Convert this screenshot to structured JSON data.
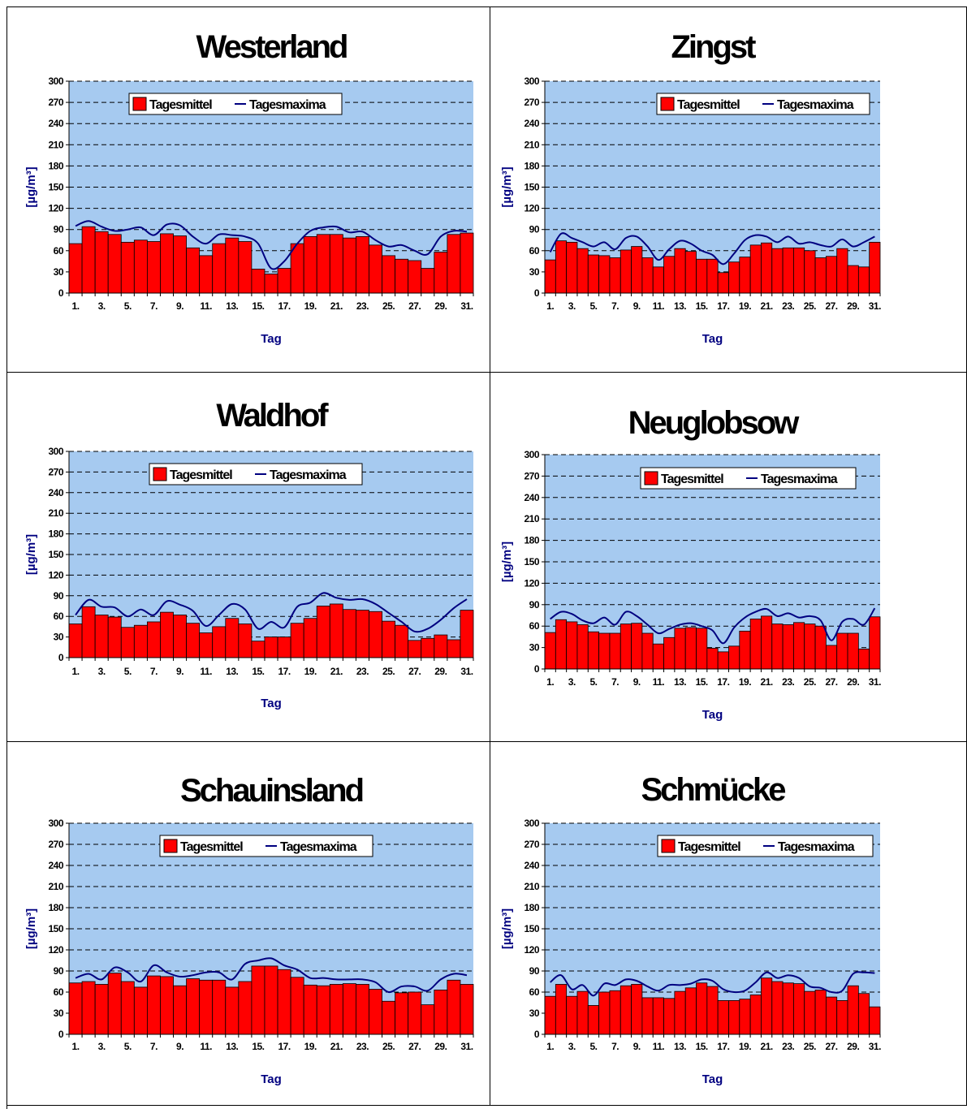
{
  "chart_data": [
    {
      "type": "bar",
      "title": "Westerland",
      "xlabel": "Tag",
      "ylabel": "[µg/m³]",
      "ylim": [
        0,
        300
      ],
      "yticks": [
        "0",
        "30",
        "60",
        "90",
        "120",
        "150",
        "180",
        "210",
        "240",
        "270",
        "300"
      ],
      "xticks": [
        "1.",
        "3.",
        "5.",
        "7.",
        "9.",
        "11.",
        "13.",
        "15.",
        "17.",
        "19.",
        "21.",
        "23.",
        "25.",
        "27.",
        "29.",
        "31."
      ],
      "legend": "top-center",
      "grid": true,
      "series": [
        {
          "name": "Tagesmittel",
          "kind": "bar",
          "color": "#ff0000",
          "values": [
            70,
            94,
            87,
            83,
            72,
            75,
            73,
            84,
            81,
            64,
            53,
            70,
            78,
            73,
            34,
            27,
            35,
            70,
            80,
            83,
            83,
            78,
            80,
            68,
            53,
            48,
            46,
            35,
            58,
            83,
            85
          ]
        },
        {
          "name": "Tagesmaxima",
          "kind": "line",
          "color": "#000080",
          "values": [
            95,
            102,
            94,
            88,
            90,
            93,
            82,
            97,
            96,
            80,
            70,
            83,
            82,
            80,
            70,
            35,
            45,
            70,
            88,
            93,
            94,
            86,
            87,
            75,
            66,
            68,
            60,
            55,
            80,
            88,
            87
          ]
        }
      ]
    },
    {
      "type": "bar",
      "title": "Zingst",
      "xlabel": "Tag",
      "ylabel": "[µg/m³]",
      "ylim": [
        0,
        300
      ],
      "yticks": [
        "0",
        "30",
        "60",
        "90",
        "120",
        "150",
        "180",
        "210",
        "240",
        "270",
        "300"
      ],
      "xticks": [
        "1.",
        "3.",
        "5.",
        "7.",
        "9.",
        "11.",
        "13.",
        "15.",
        "17.",
        "19.",
        "21.",
        "23.",
        "25.",
        "27.",
        "29.",
        "31."
      ],
      "legend": "top-right",
      "grid": true,
      "series": [
        {
          "name": "Tagesmittel",
          "kind": "bar",
          "color": "#ff0000",
          "values": [
            47,
            74,
            72,
            63,
            54,
            53,
            50,
            61,
            66,
            50,
            37,
            52,
            63,
            59,
            48,
            48,
            29,
            44,
            51,
            68,
            71,
            63,
            64,
            64,
            60,
            50,
            52,
            63,
            39,
            37,
            72
          ]
        },
        {
          "name": "Tagesmaxima",
          "kind": "line",
          "color": "#000080",
          "values": [
            58,
            84,
            78,
            72,
            66,
            72,
            62,
            78,
            80,
            66,
            47,
            62,
            74,
            70,
            60,
            54,
            41,
            56,
            75,
            82,
            80,
            72,
            80,
            70,
            72,
            68,
            66,
            76,
            66,
            72,
            80
          ]
        }
      ]
    },
    {
      "type": "bar",
      "title": "Waldhof",
      "xlabel": "Tag",
      "ylabel": "[µg/m³]",
      "ylim": [
        0,
        300
      ],
      "yticks": [
        "0",
        "30",
        "60",
        "90",
        "120",
        "150",
        "180",
        "210",
        "240",
        "270",
        "300"
      ],
      "xticks": [
        "1.",
        "3.",
        "5.",
        "7.",
        "9.",
        "11.",
        "13.",
        "15.",
        "17.",
        "19.",
        "21.",
        "23.",
        "25.",
        "27.",
        "29.",
        "31."
      ],
      "legend": "top-right",
      "grid": true,
      "series": [
        {
          "name": "Tagesmittel",
          "kind": "bar",
          "color": "#ff0000",
          "values": [
            49,
            74,
            62,
            59,
            44,
            47,
            52,
            66,
            62,
            50,
            36,
            45,
            57,
            49,
            24,
            30,
            30,
            50,
            57,
            75,
            78,
            70,
            69,
            67,
            53,
            47,
            25,
            28,
            33,
            26,
            69
          ]
        },
        {
          "name": "Tagesmaxima",
          "kind": "line",
          "color": "#000080",
          "values": [
            62,
            84,
            74,
            73,
            60,
            70,
            62,
            82,
            77,
            68,
            46,
            62,
            78,
            70,
            42,
            52,
            44,
            74,
            80,
            94,
            87,
            84,
            85,
            78,
            65,
            52,
            38,
            42,
            55,
            72,
            85
          ]
        }
      ]
    },
    {
      "type": "bar",
      "title": "Neuglobsow",
      "xlabel": "Tag",
      "ylabel": "[µg/m³]",
      "ylim": [
        0,
        300
      ],
      "yticks": [
        "0",
        "30",
        "60",
        "90",
        "120",
        "150",
        "180",
        "210",
        "240",
        "270",
        "300"
      ],
      "xticks": [
        "1.",
        "3.",
        "5.",
        "7.",
        "9.",
        "11.",
        "13.",
        "15.",
        "17.",
        "19.",
        "21.",
        "23.",
        "25.",
        "27.",
        "29.",
        "31."
      ],
      "legend": "top-right",
      "grid": true,
      "series": [
        {
          "name": "Tagesmittel",
          "kind": "bar",
          "color": "#ff0000",
          "values": [
            51,
            69,
            66,
            62,
            52,
            50,
            50,
            63,
            64,
            50,
            35,
            44,
            57,
            58,
            57,
            29,
            24,
            32,
            53,
            70,
            74,
            63,
            62,
            65,
            63,
            60,
            33,
            50,
            50,
            28,
            73
          ]
        },
        {
          "name": "Tagesmaxima",
          "kind": "line",
          "color": "#000080",
          "values": [
            70,
            80,
            77,
            68,
            64,
            72,
            62,
            80,
            74,
            62,
            50,
            56,
            62,
            64,
            60,
            54,
            36,
            58,
            72,
            80,
            84,
            74,
            78,
            72,
            74,
            68,
            40,
            66,
            70,
            62,
            85
          ]
        }
      ]
    },
    {
      "type": "bar",
      "title": "Schauinsland",
      "xlabel": "Tag",
      "ylabel": "[µg/m³]",
      "ylim": [
        0,
        300
      ],
      "yticks": [
        "0",
        "30",
        "60",
        "90",
        "120",
        "150",
        "180",
        "210",
        "240",
        "270",
        "300"
      ],
      "xticks": [
        "1.",
        "3.",
        "5.",
        "7.",
        "9.",
        "11.",
        "13.",
        "15.",
        "17.",
        "19.",
        "21.",
        "23.",
        "25.",
        "27.",
        "29.",
        "31."
      ],
      "legend": "top-right",
      "grid": true,
      "series": [
        {
          "name": "Tagesmittel",
          "kind": "bar",
          "color": "#ff0000",
          "values": [
            73,
            75,
            71,
            87,
            75,
            67,
            83,
            82,
            69,
            79,
            77,
            77,
            67,
            75,
            97,
            97,
            92,
            81,
            70,
            69,
            71,
            72,
            71,
            64,
            47,
            59,
            60,
            42,
            63,
            77,
            71
          ]
        },
        {
          "name": "Tagesmaxima",
          "kind": "line",
          "color": "#000080",
          "values": [
            80,
            86,
            78,
            95,
            88,
            75,
            98,
            88,
            82,
            84,
            88,
            88,
            78,
            100,
            105,
            108,
            98,
            92,
            80,
            80,
            78,
            78,
            78,
            74,
            60,
            68,
            68,
            62,
            78,
            86,
            84
          ]
        }
      ]
    },
    {
      "type": "bar",
      "title": "Schmücke",
      "xlabel": "Tag",
      "ylabel": "[µg/m³]",
      "ylim": [
        0,
        300
      ],
      "yticks": [
        "0",
        "30",
        "60",
        "90",
        "120",
        "150",
        "180",
        "210",
        "240",
        "270",
        "300"
      ],
      "xticks": [
        "1.",
        "3.",
        "5.",
        "7.",
        "9.",
        "11.",
        "13.",
        "15.",
        "17.",
        "19.",
        "21.",
        "23.",
        "25.",
        "27.",
        "29.",
        "31."
      ],
      "legend": "top-right",
      "grid": true,
      "series": [
        {
          "name": "Tagesmittel",
          "kind": "bar",
          "color": "#ff0000",
          "values": [
            54,
            71,
            54,
            61,
            41,
            60,
            62,
            69,
            71,
            52,
            52,
            51,
            61,
            66,
            73,
            68,
            48,
            48,
            50,
            56,
            80,
            75,
            73,
            72,
            61,
            63,
            53,
            48,
            69,
            58,
            39
          ]
        },
        {
          "name": "Tagesmaxima",
          "kind": "line",
          "color": "#000080",
          "values": [
            74,
            84,
            64,
            70,
            55,
            72,
            70,
            78,
            76,
            68,
            62,
            70,
            70,
            72,
            78,
            76,
            64,
            60,
            62,
            74,
            88,
            80,
            84,
            80,
            68,
            66,
            60,
            62,
            86,
            88,
            87
          ]
        }
      ]
    }
  ],
  "colors": {
    "plot_area": "#a6caf0",
    "bar": "#ff0000",
    "line": "#000080",
    "axis_title": "#000080"
  }
}
